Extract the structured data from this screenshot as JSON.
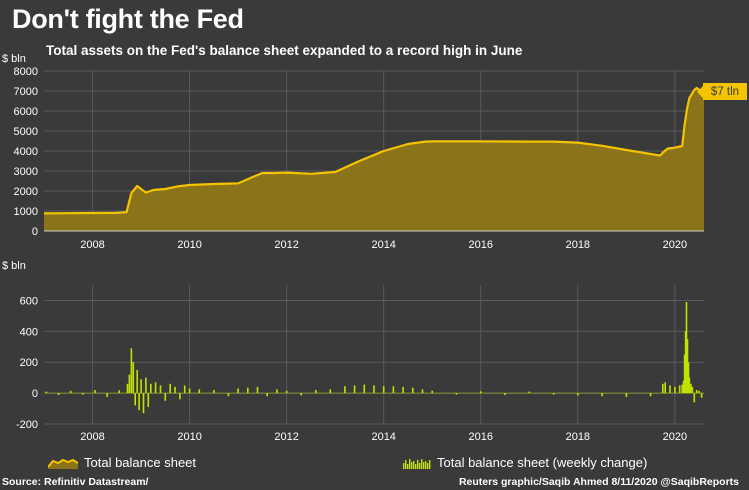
{
  "title": "Don't fight the Fed",
  "subtitle": "Total assets on the Fed's balance sheet expanded to a record high in June",
  "source": "Source: Refinitiv Datastream/",
  "credit": "Reuters graphic/Saqib Ahmed 8/11/2020 @SaqibReports",
  "colors": {
    "background": "#3a3a3a",
    "line": "#f4c400",
    "area": "#8a7319",
    "bars": "#c4e200",
    "grid": "#5a5a5a"
  },
  "chart_data": [
    {
      "type": "area",
      "title": "Total assets on the Fed's balance sheet expanded to a record high in June",
      "ylabel": "$ bln",
      "ylim": [
        0,
        8000
      ],
      "yticks": [
        "0",
        "1000",
        "2000",
        "3000",
        "4000",
        "5000",
        "6000",
        "7000",
        "8000"
      ],
      "xlim": [
        2007.0,
        2020.6
      ],
      "xticks": [
        "2008",
        "2010",
        "2012",
        "2014",
        "2016",
        "2018",
        "2020"
      ],
      "annotation": "$7 tln",
      "series": [
        {
          "name": "Total balance sheet",
          "x": [
            2007.0,
            2007.5,
            2008.0,
            2008.5,
            2008.7,
            2008.8,
            2008.92,
            2009.0,
            2009.1,
            2009.25,
            2009.5,
            2009.75,
            2010.0,
            2010.5,
            2011.0,
            2011.3,
            2011.5,
            2011.75,
            2012.0,
            2012.5,
            2013.0,
            2013.5,
            2014.0,
            2014.5,
            2014.85,
            2015.0,
            2016.0,
            2017.0,
            2017.5,
            2018.0,
            2018.5,
            2019.0,
            2019.5,
            2019.7,
            2019.75,
            2019.85,
            2020.0,
            2020.15,
            2020.2,
            2020.25,
            2020.3,
            2020.4,
            2020.45,
            2020.5,
            2020.55,
            2020.6
          ],
          "values": [
            880,
            890,
            900,
            905,
            940,
            1900,
            2250,
            2100,
            1920,
            2050,
            2100,
            2230,
            2300,
            2350,
            2380,
            2700,
            2900,
            2900,
            2920,
            2860,
            2950,
            3500,
            4000,
            4350,
            4470,
            4480,
            4480,
            4470,
            4470,
            4420,
            4260,
            4050,
            3850,
            3770,
            3920,
            4120,
            4170,
            4250,
            5300,
            6100,
            6650,
            7050,
            7150,
            7050,
            6930,
            6950
          ]
        }
      ]
    },
    {
      "type": "bar",
      "ylabel": "$ bln",
      "ylim": [
        -200,
        700
      ],
      "yticks": [
        "-200",
        "0",
        "200",
        "400",
        "600"
      ],
      "xlim": [
        2007.0,
        2020.6
      ],
      "xticks": [
        "2008",
        "2010",
        "2012",
        "2014",
        "2016",
        "2018",
        "2020"
      ],
      "series": [
        {
          "name": "Total balance sheet (weekly change)",
          "x": [
            2007.05,
            2007.3,
            2007.55,
            2007.8,
            2008.05,
            2008.3,
            2008.55,
            2008.72,
            2008.76,
            2008.8,
            2008.84,
            2008.88,
            2008.92,
            2008.96,
            2009.0,
            2009.05,
            2009.1,
            2009.15,
            2009.2,
            2009.3,
            2009.4,
            2009.5,
            2009.6,
            2009.7,
            2009.8,
            2009.9,
            2010.0,
            2010.2,
            2010.5,
            2010.8,
            2011.0,
            2011.2,
            2011.4,
            2011.6,
            2011.8,
            2012.0,
            2012.3,
            2012.6,
            2012.9,
            2013.2,
            2013.4,
            2013.6,
            2013.8,
            2014.0,
            2014.2,
            2014.4,
            2014.6,
            2014.8,
            2015.0,
            2015.5,
            2016.0,
            2016.5,
            2017.0,
            2017.5,
            2018.0,
            2018.5,
            2019.0,
            2019.5,
            2019.75,
            2019.8,
            2019.9,
            2020.0,
            2020.1,
            2020.15,
            2020.18,
            2020.2,
            2020.22,
            2020.24,
            2020.26,
            2020.28,
            2020.3,
            2020.33,
            2020.36,
            2020.4,
            2020.45,
            2020.5,
            2020.55
          ],
          "values": [
            10,
            -12,
            15,
            -10,
            20,
            -25,
            18,
            60,
            120,
            290,
            200,
            -80,
            150,
            -110,
            90,
            -130,
            100,
            -90,
            60,
            70,
            50,
            -50,
            60,
            40,
            -40,
            50,
            30,
            25,
            20,
            -20,
            30,
            35,
            40,
            -20,
            25,
            15,
            -15,
            20,
            25,
            45,
            50,
            55,
            50,
            45,
            45,
            40,
            35,
            25,
            15,
            -10,
            12,
            -12,
            10,
            -10,
            -15,
            -20,
            -25,
            -20,
            60,
            70,
            50,
            40,
            50,
            55,
            80,
            250,
            400,
            590,
            350,
            200,
            100,
            60,
            40,
            -60,
            20,
            15,
            -30
          ]
        }
      ]
    }
  ]
}
